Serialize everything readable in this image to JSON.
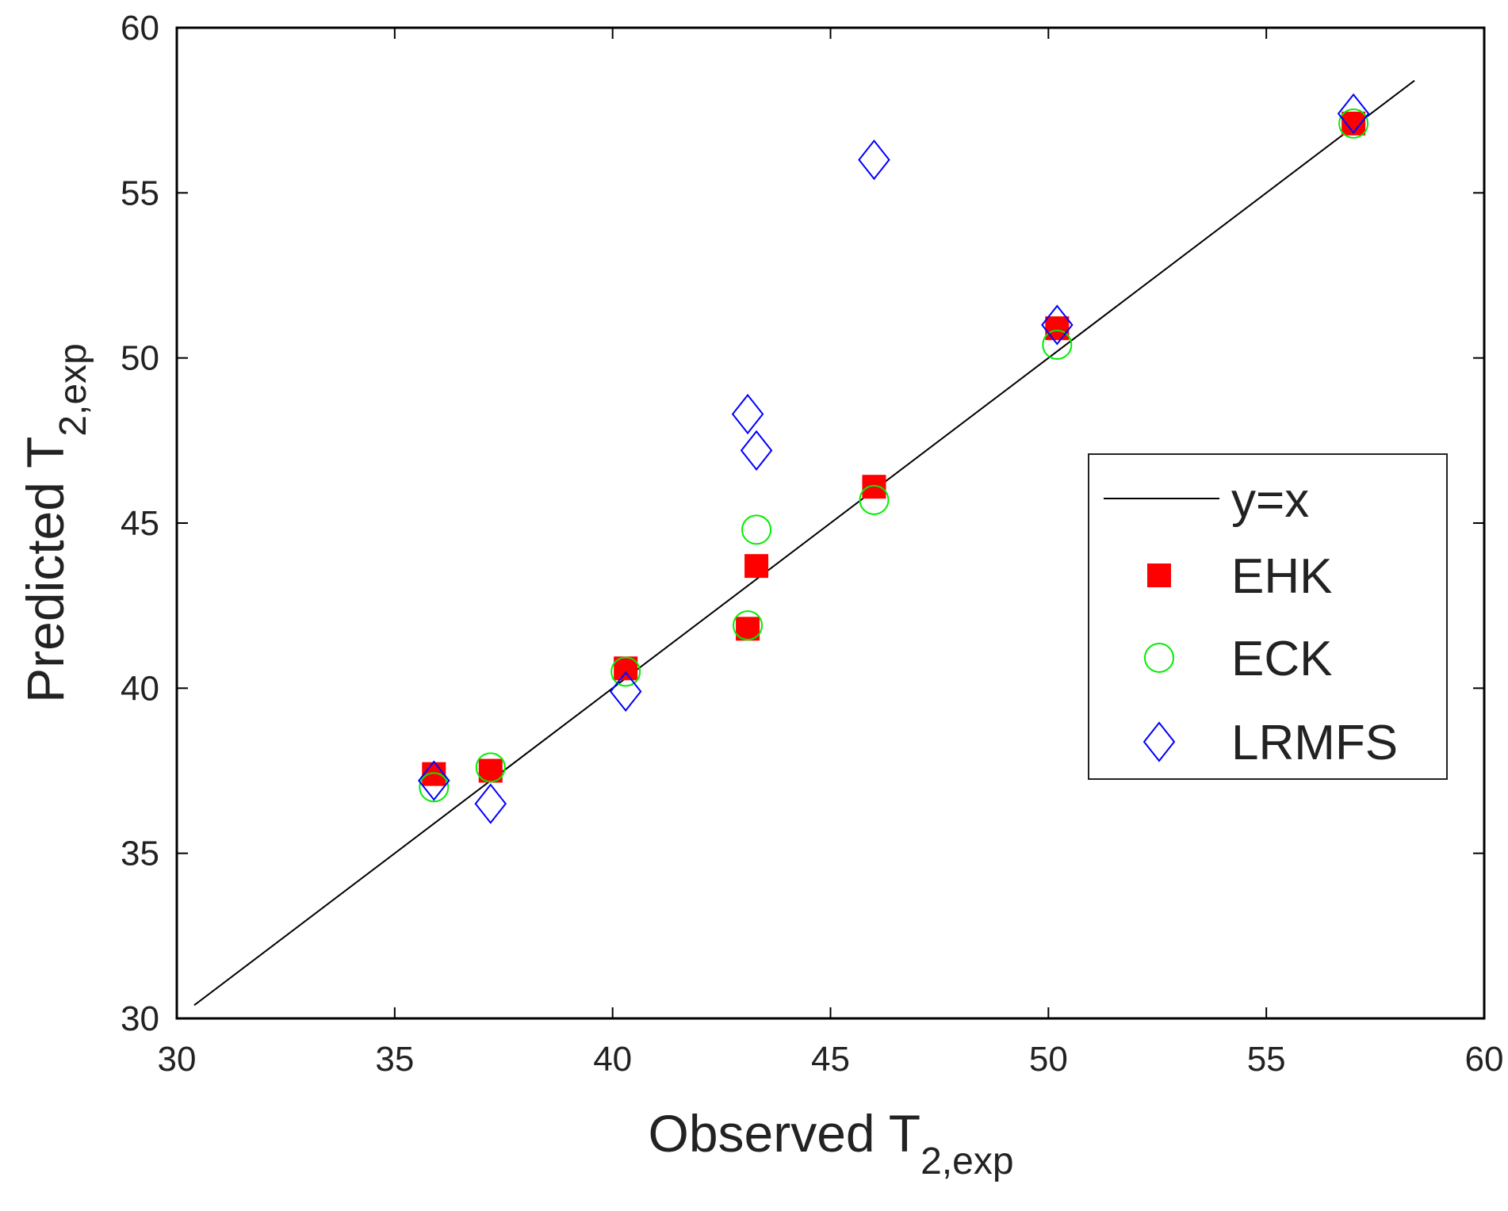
{
  "chart_data": {
    "type": "scatter",
    "xlabel": {
      "main": "Observed T",
      "sub": "2,exp"
    },
    "ylabel": {
      "main": "Predicted T",
      "sub": "2,exp"
    },
    "xlim": [
      30,
      60
    ],
    "ylim": [
      30,
      60
    ],
    "xticks": [
      30,
      35,
      40,
      45,
      50,
      55,
      60
    ],
    "yticks": [
      30,
      35,
      40,
      45,
      50,
      55,
      60
    ],
    "grid": false,
    "legend_position": "center-right",
    "reference_line": {
      "name": "y=x",
      "x": [
        30.4,
        58.4
      ],
      "y": [
        30.4,
        58.4
      ],
      "color": "#000000"
    },
    "series": [
      {
        "name": "EHK",
        "marker": "filled-square",
        "color": "#ff0000",
        "x": [
          35.9,
          37.2,
          40.3,
          43.1,
          43.3,
          46.0,
          50.2,
          57.0
        ],
        "y": [
          37.4,
          37.5,
          40.6,
          41.8,
          43.7,
          46.1,
          50.9,
          57.1
        ]
      },
      {
        "name": "ECK",
        "marker": "open-circle",
        "color": "#00ee00",
        "x": [
          35.9,
          37.2,
          40.3,
          43.1,
          43.3,
          46.0,
          50.2,
          57.0
        ],
        "y": [
          37.0,
          37.6,
          40.5,
          41.9,
          44.8,
          45.7,
          50.4,
          57.1
        ]
      },
      {
        "name": "LRMFS",
        "marker": "open-diamond",
        "color": "#0000ff",
        "x": [
          35.9,
          37.2,
          40.3,
          43.1,
          43.3,
          46.0,
          50.2,
          57.0
        ],
        "y": [
          37.2,
          36.5,
          39.9,
          48.3,
          47.2,
          56.0,
          51.0,
          57.4
        ]
      }
    ]
  }
}
